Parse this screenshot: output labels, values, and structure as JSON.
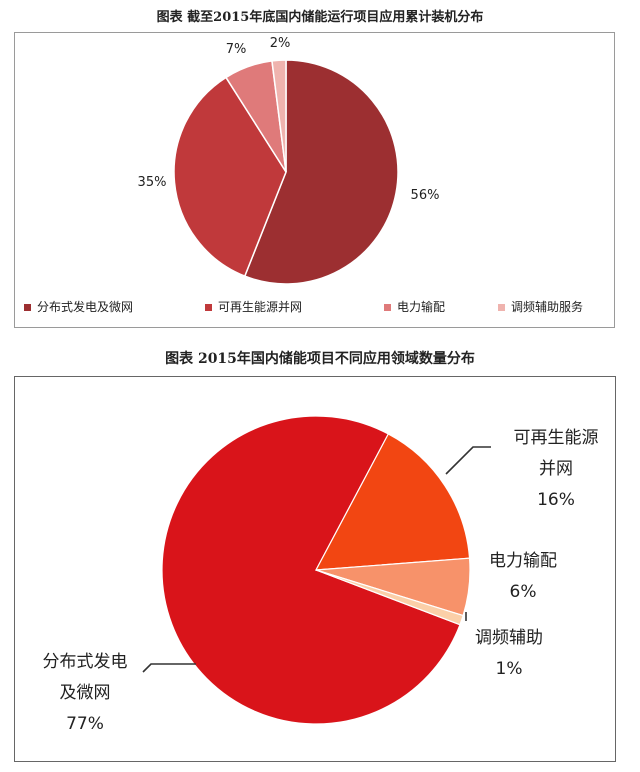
{
  "chart_data": [
    {
      "type": "pie",
      "title": "图表  截至2015年底国内储能运行项目应用累计装机分布",
      "categories": [
        "分布式发电及微网",
        "可再生能源并网",
        "电力输配",
        "调频辅助服务"
      ],
      "values": [
        56,
        35,
        7,
        2
      ],
      "value_labels": [
        "56%",
        "35%",
        "7%",
        "2%"
      ],
      "colors": [
        "#9c2f31",
        "#c0393b",
        "#df7a7a",
        "#efb3ae"
      ],
      "legend_position": "bottom"
    },
    {
      "type": "pie",
      "title": "图表  2015年国内储能项目不同应用领域数量分布",
      "categories": [
        "分布式发电及微网",
        "可再生能源并网",
        "电力输配",
        "调频辅助"
      ],
      "values": [
        77,
        16,
        6,
        1
      ],
      "label_lines": [
        [
          "分布式发电",
          "及微网",
          "77%"
        ],
        [
          "可再生能源",
          "并网",
          "16%"
        ],
        [
          "电力输配",
          "6%"
        ],
        [
          "调频辅助",
          "1%"
        ]
      ],
      "colors": [
        "#d9141a",
        "#f24612",
        "#f7926a",
        "#fbcfa8"
      ],
      "legend_position": "none"
    }
  ]
}
